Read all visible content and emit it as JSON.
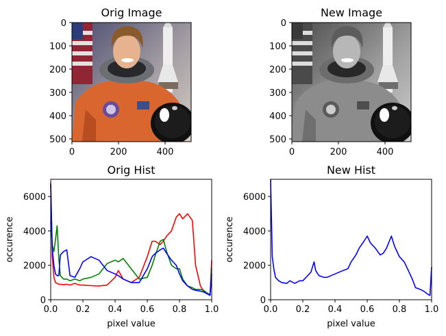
{
  "panels": {
    "orig_image": {
      "title": "Orig Image",
      "xticks": [
        "0",
        "200",
        "400"
      ],
      "yticks": [
        "0",
        "100",
        "200",
        "300",
        "400",
        "500"
      ]
    },
    "new_image": {
      "title": "New Image",
      "xticks": [
        "0",
        "200",
        "400"
      ],
      "yticks": [
        "0",
        "100",
        "200",
        "300",
        "400",
        "500"
      ]
    }
  },
  "colors": {
    "red": "#ff0000",
    "green": "#008000",
    "blue": "#0000ff"
  },
  "chart_data": [
    {
      "type": "line",
      "title": "Orig Hist",
      "xlabel": "pixel value",
      "ylabel": "occurence",
      "xlim": [
        0,
        1
      ],
      "ylim": [
        0,
        7000
      ],
      "xticks": [
        "0.0",
        "0.2",
        "0.4",
        "0.6",
        "0.8",
        "1.0"
      ],
      "yticks": [
        "0",
        "2000",
        "4000",
        "6000"
      ],
      "x": [
        0.0,
        0.01,
        0.02,
        0.03,
        0.04,
        0.05,
        0.06,
        0.08,
        0.1,
        0.12,
        0.15,
        0.18,
        0.2,
        0.25,
        0.3,
        0.35,
        0.4,
        0.42,
        0.45,
        0.5,
        0.55,
        0.6,
        0.63,
        0.65,
        0.68,
        0.7,
        0.72,
        0.75,
        0.78,
        0.8,
        0.82,
        0.85,
        0.88,
        0.9,
        0.93,
        0.95,
        0.97,
        0.99,
        1.0
      ],
      "series": [
        {
          "color": "#ff0000",
          "values": [
            6800,
            2500,
            1300,
            1000,
            950,
            900,
            900,
            880,
            900,
            850,
            950,
            850,
            850,
            820,
            800,
            850,
            1300,
            1700,
            1200,
            1000,
            1300,
            2500,
            3400,
            3400,
            3200,
            3400,
            3700,
            4000,
            4800,
            5000,
            4700,
            5000,
            4600,
            2000,
            800,
            500,
            400,
            300,
            2300
          ]
        },
        {
          "color": "#008000",
          "values": [
            4500,
            3200,
            2800,
            3500,
            4300,
            2400,
            1400,
            1200,
            1200,
            1100,
            1200,
            1100,
            1200,
            1300,
            1500,
            2100,
            2300,
            2200,
            2400,
            1800,
            1200,
            1300,
            2000,
            2600,
            3400,
            3500,
            2800,
            2000,
            1800,
            1800,
            1200,
            800,
            700,
            600,
            600,
            550,
            400,
            300,
            1800
          ]
        },
        {
          "color": "#0000ff",
          "values": [
            6700,
            3000,
            2000,
            1500,
            1400,
            1400,
            2600,
            2800,
            2900,
            1400,
            1300,
            1800,
            2200,
            2500,
            2300,
            1700,
            1500,
            1400,
            1200,
            1000,
            1000,
            1800,
            2500,
            2700,
            2900,
            3000,
            2700,
            2300,
            2000,
            1500,
            1100,
            800,
            600,
            550,
            500,
            450,
            350,
            250,
            1500
          ]
        }
      ]
    },
    {
      "type": "line",
      "title": "New Hist",
      "xlabel": "pixel value",
      "ylabel": "occurence",
      "xlim": [
        0,
        1
      ],
      "ylim": [
        0,
        7000
      ],
      "xticks": [
        "0.0",
        "0.2",
        "0.4",
        "0.6",
        "0.8",
        "1.0"
      ],
      "yticks": [
        "0",
        "2000",
        "4000",
        "6000"
      ],
      "x": [
        0.0,
        0.01,
        0.02,
        0.03,
        0.05,
        0.07,
        0.1,
        0.12,
        0.15,
        0.18,
        0.2,
        0.23,
        0.25,
        0.27,
        0.28,
        0.3,
        0.33,
        0.35,
        0.4,
        0.45,
        0.48,
        0.5,
        0.53,
        0.55,
        0.58,
        0.6,
        0.62,
        0.65,
        0.68,
        0.7,
        0.72,
        0.75,
        0.77,
        0.8,
        0.83,
        0.85,
        0.88,
        0.9,
        0.93,
        0.95,
        0.98,
        0.99,
        1.0
      ],
      "series": [
        {
          "color": "#0000ff",
          "values": [
            7000,
            2500,
            1800,
            1300,
            1100,
            1000,
            950,
            1100,
            950,
            1100,
            1100,
            1400,
            1600,
            2200,
            1700,
            1400,
            1300,
            1300,
            1500,
            1700,
            1800,
            2200,
            2600,
            3000,
            3400,
            3700,
            3300,
            3000,
            2600,
            2700,
            3000,
            3700,
            3100,
            2500,
            2200,
            1800,
            1200,
            700,
            600,
            500,
            300,
            250,
            1900
          ]
        }
      ]
    }
  ]
}
